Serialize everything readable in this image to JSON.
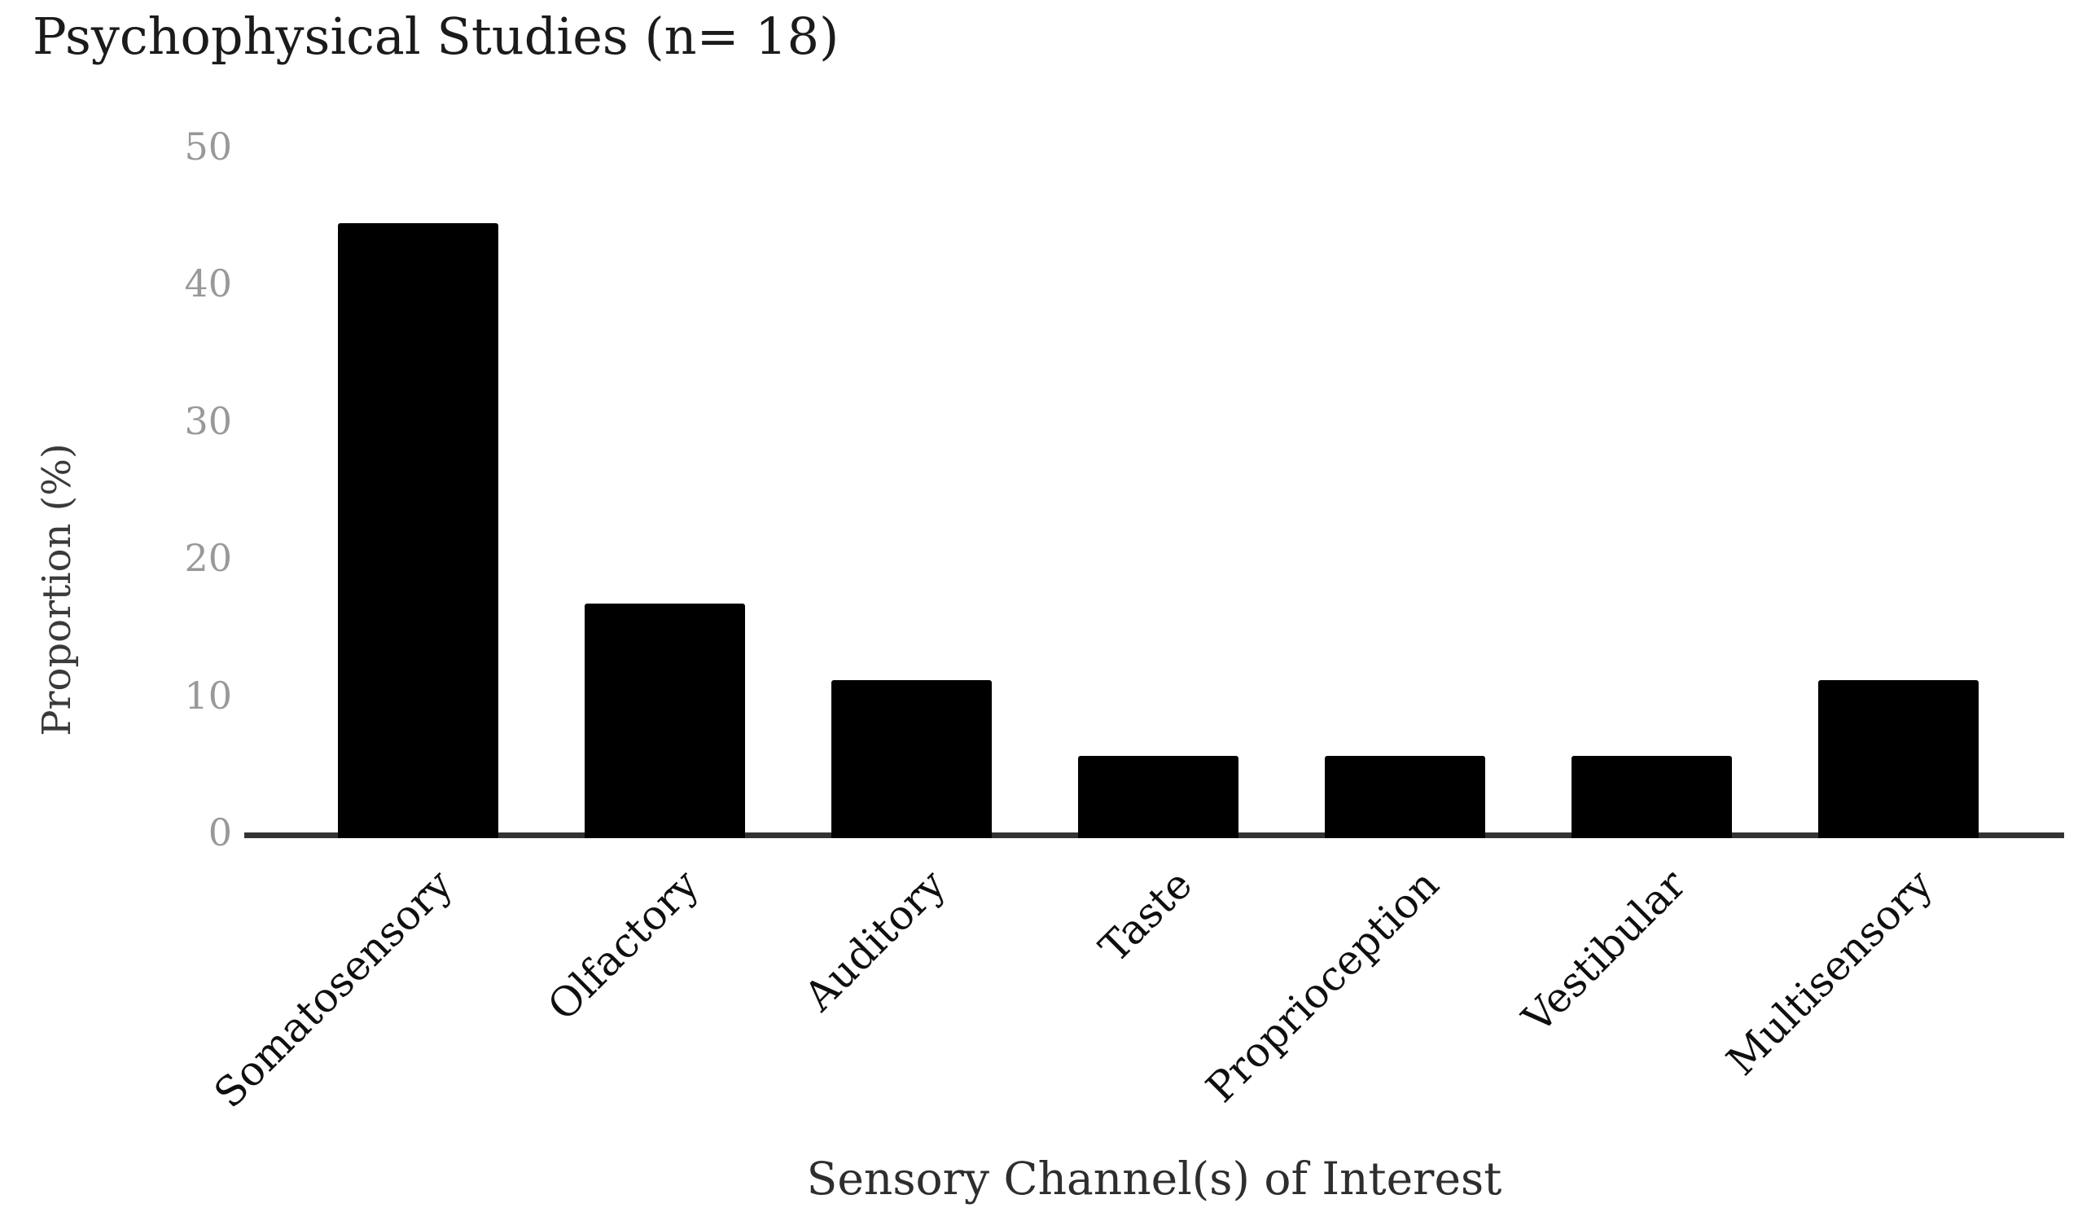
{
  "chart_data": {
    "type": "bar",
    "title": "Psychophysical Studies (n= 18)",
    "xlabel": "Sensory Channel(s) of Interest",
    "ylabel": "Proportion (%)",
    "categories": [
      "Somatosensory",
      "Olfactory",
      "Auditory",
      "Taste",
      "Proprioception",
      "Vestibular",
      "Multisensory"
    ],
    "values": [
      44.4,
      16.7,
      11.1,
      5.6,
      5.6,
      5.6,
      11.1
    ],
    "yticks": [
      0,
      10,
      20,
      30,
      40,
      50
    ],
    "ylim": [
      0,
      50
    ],
    "grid": false,
    "legend": "none",
    "x_tick_rotation_deg": 45,
    "bar_color": "#000000",
    "axis_line_color": "#333333",
    "y_tick_color": "#999999",
    "label_color": "#0f0f0f",
    "title_color": "#1b1b1b",
    "background_color": "#ffffff"
  }
}
